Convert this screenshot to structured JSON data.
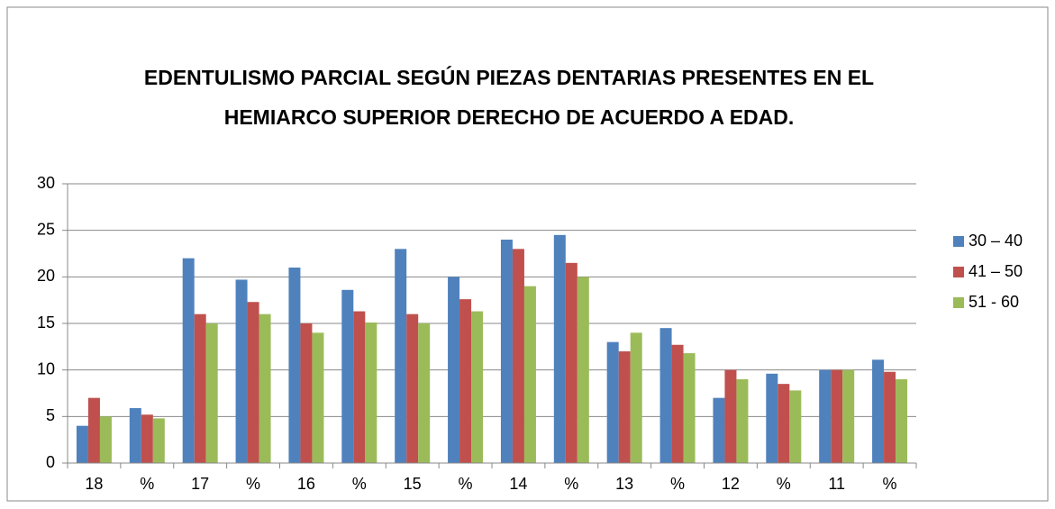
{
  "chart_data": {
    "type": "bar",
    "title": [
      "EDENTULISMO PARCIAL SEGÚN PIEZAS  DENTARIAS PRESENTES EN EL",
      "HEMIARCO  SUPERIOR DERECHO DE ACUERDO A EDAD."
    ],
    "categories": [
      "18",
      "%",
      "17",
      "%",
      "16",
      "%",
      "15",
      "%",
      "14",
      "%",
      "13",
      "%",
      "12",
      "%",
      "11",
      "%"
    ],
    "series": [
      {
        "name": "30 – 40",
        "color": "#4f81bd",
        "values": [
          4,
          5.9,
          22,
          19.7,
          21,
          18.6,
          23,
          20,
          24,
          24.5,
          13,
          14.5,
          7,
          9.6,
          10,
          11.1
        ]
      },
      {
        "name": "41 – 50",
        "color": "#c0504d",
        "values": [
          7,
          5.2,
          16,
          17.3,
          15,
          16.3,
          16,
          17.6,
          23,
          21.5,
          12,
          12.7,
          10,
          8.5,
          10,
          9.8
        ]
      },
      {
        "name": "51 - 60",
        "color": "#9bbb59",
        "values": [
          5,
          4.8,
          15,
          16,
          14,
          15.1,
          15,
          16.3,
          19,
          20,
          14,
          11.8,
          9,
          7.8,
          10,
          9
        ]
      }
    ],
    "ylim": [
      0,
      30
    ],
    "yticks": [
      0,
      5,
      10,
      15,
      20,
      25,
      30
    ],
    "grid": true,
    "legend": "right"
  }
}
